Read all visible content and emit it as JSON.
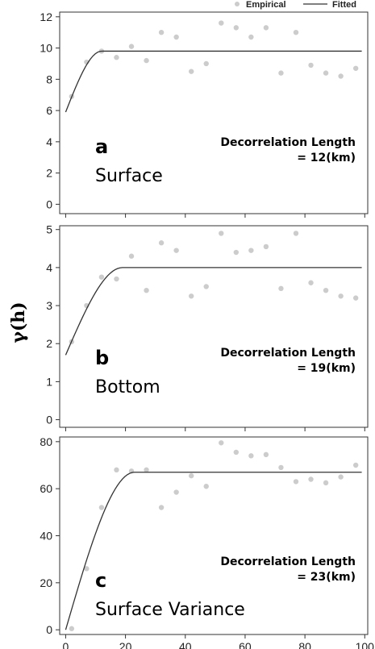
{
  "legend": {
    "empirical": "Empirical",
    "fitted": "Fitted"
  },
  "shared_ylabel": "γ(h)",
  "colors": {
    "empirical": "#cccccc",
    "fitted": "#333333",
    "frame": "#333333"
  },
  "chart_data": [
    {
      "type": "scatter",
      "letter": "a",
      "name": "Surface",
      "annotation_line1": "Decorrelation Length",
      "annotation_line2": "= 12(km)",
      "xlim": [
        -2,
        101
      ],
      "ylim": [
        -0.6,
        12.3
      ],
      "yticks": [
        0,
        2,
        4,
        6,
        8,
        10,
        12
      ],
      "xticks": [
        0,
        20,
        40,
        60,
        80,
        100
      ],
      "x_tick_labels_shown": false,
      "empirical": {
        "x": [
          2,
          7,
          12,
          17,
          22,
          27,
          32,
          37,
          42,
          47,
          52,
          57,
          62,
          67,
          72,
          77,
          82,
          87,
          92,
          97
        ],
        "y": [
          6.9,
          9.1,
          9.8,
          9.4,
          10.1,
          9.2,
          11.0,
          10.7,
          8.5,
          9.0,
          11.6,
          11.3,
          10.7,
          11.3,
          8.4,
          11.0,
          8.9,
          8.4,
          8.2,
          8.7
        ]
      },
      "fitted": {
        "model": "spherical",
        "nugget": 5.9,
        "sill": 9.8,
        "range": 12,
        "x_max": 99
      }
    },
    {
      "type": "scatter",
      "letter": "b",
      "name": "Bottom",
      "annotation_line1": "Decorrelation Length",
      "annotation_line2": "= 19(km)",
      "xlim": [
        -2,
        101
      ],
      "ylim": [
        -0.2,
        5.1
      ],
      "yticks": [
        0,
        1,
        2,
        3,
        4,
        5
      ],
      "xticks": [
        0,
        20,
        40,
        60,
        80,
        100
      ],
      "x_tick_labels_shown": false,
      "empirical": {
        "x": [
          2,
          7,
          12,
          17,
          22,
          27,
          32,
          37,
          42,
          47,
          52,
          57,
          62,
          67,
          72,
          77,
          82,
          87,
          92,
          97
        ],
        "y": [
          2.05,
          3.0,
          3.75,
          3.7,
          4.3,
          3.4,
          4.65,
          4.45,
          3.25,
          3.5,
          4.9,
          4.4,
          4.45,
          4.55,
          3.45,
          4.9,
          3.6,
          3.4,
          3.25,
          3.2
        ]
      },
      "fitted": {
        "model": "spherical",
        "nugget": 1.7,
        "sill": 4.0,
        "range": 19,
        "x_max": 99
      }
    },
    {
      "type": "scatter",
      "letter": "c",
      "name": "Surface Variance",
      "annotation_line1": "Decorrelation Length",
      "annotation_line2": "= 23(km)",
      "xlim": [
        -2,
        101
      ],
      "ylim": [
        -2,
        82
      ],
      "yticks": [
        0,
        20,
        40,
        60,
        80
      ],
      "xticks": [
        0,
        20,
        40,
        60,
        80,
        100
      ],
      "x_tick_labels_shown": true,
      "empirical": {
        "x": [
          2,
          7,
          12,
          17,
          22,
          27,
          32,
          37,
          42,
          47,
          52,
          57,
          62,
          67,
          72,
          77,
          82,
          87,
          92,
          97
        ],
        "y": [
          0.5,
          26,
          52,
          68,
          67.5,
          68,
          52,
          58.5,
          65.5,
          61,
          79.5,
          75.5,
          74,
          74.5,
          69,
          63,
          64,
          62.5,
          65,
          70
        ]
      },
      "fitted": {
        "model": "spherical",
        "nugget": 0,
        "sill": 67,
        "range": 23,
        "x_max": 99
      }
    }
  ]
}
